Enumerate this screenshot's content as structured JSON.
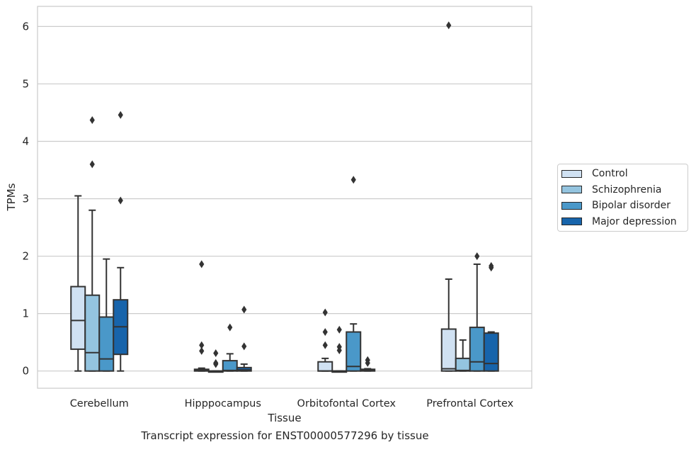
{
  "caption": "Transcript expression for ENST00000577296 by tissue",
  "colors": {
    "Control": "#d0e1f2",
    "Schizophrenia": "#94c4df",
    "Bipolar disorder": "#4a98c9",
    "Major depression": "#1764ab",
    "grid": "#cccccc",
    "ink": "#333333"
  },
  "chart_data": {
    "type": "box",
    "xlabel": "Tissue",
    "ylabel": "TPMs",
    "ylim": [
      -0.3,
      6.35
    ],
    "yticks": [
      0,
      1,
      2,
      3,
      4,
      5,
      6
    ],
    "grid": "horizontal",
    "legend_position": "outside-right",
    "categories": [
      "Cerebellum",
      "Hipppocampus",
      "Orbitofontal Cortex",
      "Prefrontal Cortex"
    ],
    "series": [
      {
        "name": "Control",
        "boxes": [
          {
            "q1": 0.38,
            "median": 0.88,
            "q3": 1.47,
            "whisker_low": 0.0,
            "whisker_high": 3.05,
            "outliers": []
          },
          {
            "q1": 0.0,
            "median": 0.01,
            "q3": 0.03,
            "whisker_low": 0.0,
            "whisker_high": 0.05,
            "outliers": [
              1.86,
              0.45,
              0.35
            ]
          },
          {
            "q1": 0.0,
            "median": 0.0,
            "q3": 0.16,
            "whisker_low": 0.0,
            "whisker_high": 0.22,
            "outliers": [
              1.02,
              0.68,
              0.45
            ]
          },
          {
            "q1": 0.0,
            "median": 0.04,
            "q3": 0.73,
            "whisker_low": 0.0,
            "whisker_high": 1.6,
            "outliers": [
              6.02
            ]
          }
        ]
      },
      {
        "name": "Schizophrenia",
        "boxes": [
          {
            "q1": 0.0,
            "median": 0.32,
            "q3": 1.32,
            "whisker_low": 0.0,
            "whisker_high": 2.8,
            "outliers": [
              4.37,
              3.6
            ]
          },
          {
            "q1": 0.0,
            "median": 0.0,
            "q3": 0.0,
            "whisker_low": 0.0,
            "whisker_high": 0.0,
            "outliers": [
              0.31,
              0.14,
              0.12
            ]
          },
          {
            "q1": 0.0,
            "median": 0.0,
            "q3": 0.0,
            "whisker_low": 0.0,
            "whisker_high": 0.0,
            "outliers": [
              0.72,
              0.42,
              0.36
            ]
          },
          {
            "q1": 0.0,
            "median": 0.01,
            "q3": 0.22,
            "whisker_low": 0.0,
            "whisker_high": 0.54,
            "outliers": []
          }
        ]
      },
      {
        "name": "Bipolar disorder",
        "boxes": [
          {
            "q1": 0.0,
            "median": 0.21,
            "q3": 0.94,
            "whisker_low": 0.0,
            "whisker_high": 1.95,
            "outliers": []
          },
          {
            "q1": 0.0,
            "median": 0.01,
            "q3": 0.18,
            "whisker_low": 0.0,
            "whisker_high": 0.3,
            "outliers": [
              0.76
            ]
          },
          {
            "q1": 0.0,
            "median": 0.08,
            "q3": 0.68,
            "whisker_low": 0.0,
            "whisker_high": 0.82,
            "outliers": [
              3.33
            ]
          },
          {
            "q1": 0.0,
            "median": 0.16,
            "q3": 0.76,
            "whisker_low": 0.0,
            "whisker_high": 1.86,
            "outliers": [
              2.0
            ]
          }
        ]
      },
      {
        "name": "Major depression",
        "boxes": [
          {
            "q1": 0.29,
            "median": 0.77,
            "q3": 1.24,
            "whisker_low": 0.0,
            "whisker_high": 1.8,
            "outliers": [
              4.46,
              2.97
            ]
          },
          {
            "q1": 0.0,
            "median": 0.02,
            "q3": 0.06,
            "whisker_low": 0.0,
            "whisker_high": 0.12,
            "outliers": [
              1.07,
              0.43
            ]
          },
          {
            "q1": 0.0,
            "median": 0.01,
            "q3": 0.03,
            "whisker_low": 0.0,
            "whisker_high": 0.04,
            "outliers": [
              0.19,
              0.14
            ]
          },
          {
            "q1": 0.0,
            "median": 0.13,
            "q3": 0.66,
            "whisker_low": 0.0,
            "whisker_high": 0.68,
            "outliers": [
              1.83,
              1.8
            ]
          }
        ]
      }
    ]
  }
}
